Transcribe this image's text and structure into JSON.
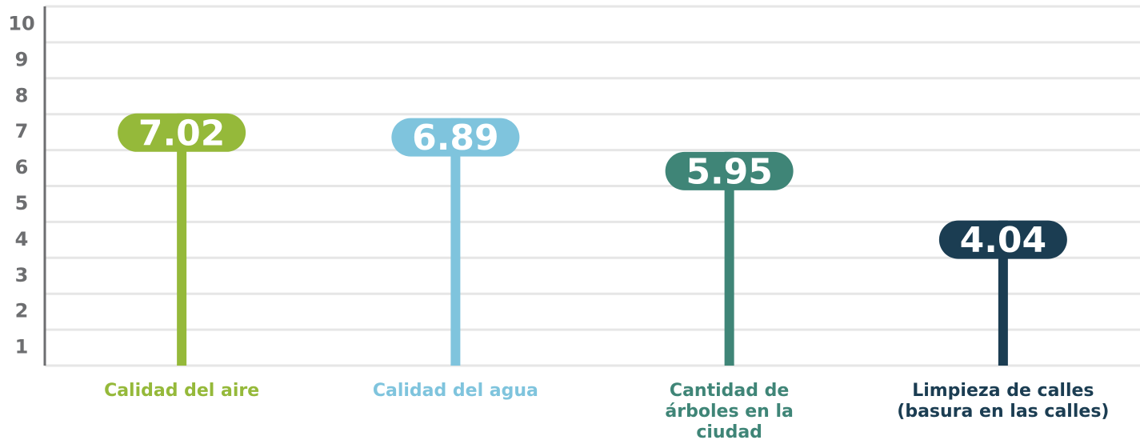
{
  "chart_data": {
    "type": "lollipop",
    "categories": [
      "Calidad del aire",
      "Calidad del agua",
      "Cantidad de árboles en la ciudad",
      "Limpieza de calles (basura en las calles)"
    ],
    "values": [
      7.02,
      6.89,
      5.95,
      4.04
    ],
    "colors": [
      "#95b93a",
      "#7fc4dd",
      "#3f8577",
      "#1b3d52"
    ],
    "ylim": [
      0,
      10
    ],
    "yticks": [
      1,
      2,
      3,
      4,
      5,
      6,
      7,
      8,
      9,
      10
    ],
    "grid": true
  }
}
